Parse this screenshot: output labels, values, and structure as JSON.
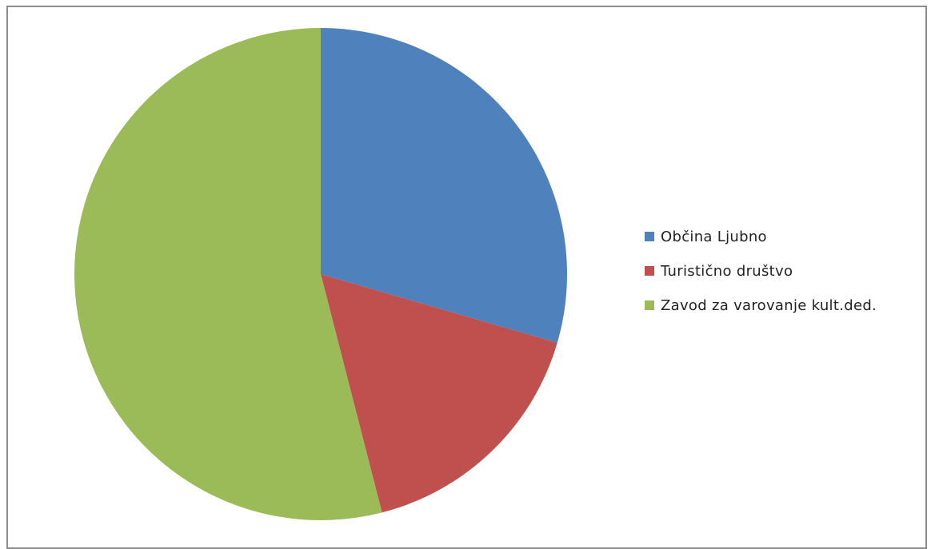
{
  "chart_data": {
    "type": "pie",
    "categories": [
      "Občina Ljubno",
      "Turistično društvo",
      "Zavod za varovanje kult.ded."
    ],
    "values": [
      29.5,
      16.5,
      54
    ],
    "value_unit": "percent",
    "colors": [
      "#4f81bd",
      "#c0504d",
      "#9bbb59"
    ],
    "start_angle_deg": 0,
    "direction": "clockwise",
    "title": "",
    "legend": {
      "placement": "right",
      "entries": [
        "Občina Ljubno",
        "Turistično društvo",
        "Zavod za varovanje kult.ded."
      ]
    }
  }
}
